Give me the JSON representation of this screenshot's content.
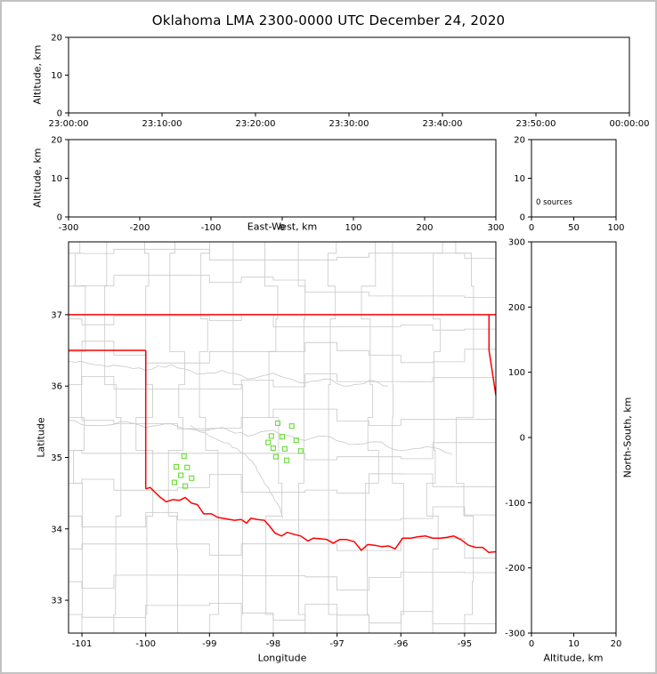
{
  "window": {
    "background": "#ffffff",
    "border_color": "#c2c2c2"
  },
  "title": "Oklahoma LMA 2300-0000 UTC December 24, 2020",
  "chart_data": {
    "type": "scatter",
    "description": "XLMA-style lightning mapping array multi-panel display with zero sources plotted; plan-view map shows Oklahoma state border (red), county lines and rivers (gray), and LMA station locations (green squares).",
    "colors": {
      "axis": "#000000",
      "station": "#66DD33",
      "state_border": "#ff0000",
      "county": "#c8c8c8",
      "river": "#c8c8c8"
    },
    "panels": [
      {
        "id": "time_height",
        "type": "scatter",
        "x_ticks": [
          "23:00:00",
          "23:10:00",
          "23:20:00",
          "23:30:00",
          "23:40:00",
          "23:50:00",
          "00:00:00"
        ],
        "ylabel": "Altitude, km",
        "y_ticks": [
          0,
          10,
          20
        ],
        "ylim": [
          0,
          20
        ],
        "points": []
      },
      {
        "id": "ew_height",
        "type": "scatter",
        "xlabel": "East-West, km",
        "x_ticks": [
          -300,
          -200,
          -100,
          0,
          100,
          200,
          300
        ],
        "xlim": [
          -300,
          300
        ],
        "ylabel": "Altitude, km",
        "y_ticks": [
          0,
          10,
          20
        ],
        "ylim": [
          0,
          20
        ],
        "points": []
      },
      {
        "id": "alt_histogram",
        "type": "line",
        "x_ticks": [
          0,
          50,
          100
        ],
        "xlim": [
          0,
          100
        ],
        "y_ticks": [
          0,
          10,
          20
        ],
        "ylim": [
          0,
          20
        ],
        "annotation": "0 sources",
        "points": []
      },
      {
        "id": "plan_map",
        "type": "scatter",
        "xlabel": "Longitude",
        "x_ticks": [
          -101,
          -100,
          -99,
          -98,
          -97,
          -96,
          -95
        ],
        "xlim": [
          -101.21,
          -94.51
        ],
        "ylabel": "Latitude",
        "y_ticks": [
          33,
          34,
          35,
          36,
          37
        ],
        "ylim": [
          32.54,
          38.02
        ],
        "stations": [
          [
            -97.93,
            35.48
          ],
          [
            -97.71,
            35.44
          ],
          [
            -98.03,
            35.3
          ],
          [
            -97.86,
            35.29
          ],
          [
            -97.64,
            35.24
          ],
          [
            -98.08,
            35.21
          ],
          [
            -98.0,
            35.13
          ],
          [
            -97.82,
            35.12
          ],
          [
            -97.57,
            35.09
          ],
          [
            -97.96,
            35.01
          ],
          [
            -97.79,
            34.96
          ],
          [
            -99.4,
            35.02
          ],
          [
            -99.52,
            34.87
          ],
          [
            -99.35,
            34.86
          ],
          [
            -99.45,
            34.75
          ],
          [
            -99.28,
            34.71
          ],
          [
            -99.55,
            34.65
          ],
          [
            -99.38,
            34.6
          ]
        ],
        "state_border": [
          [
            [
              -101.21,
              37.0
            ],
            [
              -94.51,
              37.0
            ]
          ],
          [
            [
              -101.21,
              36.5
            ],
            [
              -100.0,
              36.5
            ]
          ],
          [
            [
              -100.0,
              36.5
            ],
            [
              -100.0,
              34.56
            ]
          ],
          [
            [
              -94.617,
              37.0
            ],
            [
              -94.617,
              36.5
            ],
            [
              -94.51,
              35.87
            ]
          ],
          [
            [
              -100.0,
              34.56
            ],
            [
              -99.93,
              34.58
            ],
            [
              -99.84,
              34.5
            ],
            [
              -99.77,
              34.44
            ],
            [
              -99.68,
              34.38
            ],
            [
              -99.58,
              34.41
            ],
            [
              -99.47,
              34.4
            ],
            [
              -99.38,
              34.44
            ],
            [
              -99.28,
              34.36
            ],
            [
              -99.19,
              34.34
            ],
            [
              -99.09,
              34.21
            ],
            [
              -98.97,
              34.21
            ],
            [
              -98.87,
              34.16
            ],
            [
              -98.74,
              34.14
            ],
            [
              -98.61,
              34.12
            ],
            [
              -98.5,
              34.13
            ],
            [
              -98.42,
              34.08
            ],
            [
              -98.35,
              34.15
            ],
            [
              -98.25,
              34.13
            ],
            [
              -98.14,
              34.12
            ],
            [
              -98.06,
              34.04
            ],
            [
              -97.97,
              33.94
            ],
            [
              -97.87,
              33.9
            ],
            [
              -97.78,
              33.95
            ],
            [
              -97.66,
              33.92
            ],
            [
              -97.57,
              33.9
            ],
            [
              -97.46,
              33.83
            ],
            [
              -97.37,
              33.87
            ],
            [
              -97.25,
              33.86
            ],
            [
              -97.16,
              33.85
            ],
            [
              -97.06,
              33.8
            ],
            [
              -96.96,
              33.85
            ],
            [
              -96.85,
              33.85
            ],
            [
              -96.73,
              33.82
            ],
            [
              -96.62,
              33.7
            ],
            [
              -96.52,
              33.78
            ],
            [
              -96.41,
              33.77
            ],
            [
              -96.3,
              33.75
            ],
            [
              -96.19,
              33.76
            ],
            [
              -96.09,
              33.72
            ],
            [
              -95.97,
              33.87
            ],
            [
              -95.84,
              33.87
            ],
            [
              -95.73,
              33.89
            ],
            [
              -95.61,
              33.9
            ],
            [
              -95.5,
              33.87
            ],
            [
              -95.39,
              33.87
            ],
            [
              -95.28,
              33.88
            ],
            [
              -95.17,
              33.9
            ],
            [
              -95.06,
              33.85
            ],
            [
              -94.94,
              33.77
            ],
            [
              -94.83,
              33.74
            ],
            [
              -94.72,
              33.74
            ],
            [
              -94.62,
              33.67
            ],
            [
              -94.51,
              33.68
            ]
          ]
        ],
        "rivers": [
          [
            [
              -101.21,
              36.35
            ],
            [
              -100.8,
              36.3
            ],
            [
              -100.4,
              36.28
            ],
            [
              -100.0,
              36.22
            ],
            [
              -99.6,
              36.3
            ],
            [
              -99.2,
              36.17
            ],
            [
              -98.8,
              36.22
            ],
            [
              -98.4,
              36.1
            ],
            [
              -98.0,
              36.18
            ],
            [
              -97.6,
              36.05
            ],
            [
              -97.2,
              36.1
            ],
            [
              -96.8,
              36.0
            ],
            [
              -96.5,
              36.08
            ],
            [
              -96.2,
              36.0
            ]
          ],
          [
            [
              -101.21,
              35.52
            ],
            [
              -100.8,
              35.45
            ],
            [
              -100.4,
              35.5
            ],
            [
              -100.0,
              35.42
            ],
            [
              -99.6,
              35.47
            ],
            [
              -99.2,
              35.38
            ],
            [
              -98.8,
              35.42
            ],
            [
              -98.4,
              35.3
            ],
            [
              -98.0,
              35.38
            ],
            [
              -97.6,
              35.25
            ],
            [
              -97.2,
              35.3
            ],
            [
              -96.8,
              35.18
            ],
            [
              -96.4,
              35.22
            ],
            [
              -96.0,
              35.1
            ],
            [
              -95.6,
              35.15
            ],
            [
              -95.2,
              35.05
            ]
          ],
          [
            [
              -99.3,
              35.45
            ],
            [
              -99.0,
              35.3
            ],
            [
              -98.7,
              35.2
            ],
            [
              -98.45,
              35.05
            ],
            [
              -98.3,
              34.9
            ],
            [
              -98.2,
              34.75
            ],
            [
              -98.1,
              34.6
            ],
            [
              -98.0,
              34.45
            ],
            [
              -97.9,
              34.3
            ],
            [
              -97.85,
              34.15
            ]
          ]
        ],
        "county_grid": {
          "lon0": -101.21,
          "lon1": -94.51,
          "lat0": 32.54,
          "lat1": 38.02,
          "col": 0.5,
          "row": 0.46,
          "col_start": -101.0,
          "row_start": 32.8,
          "jog_probability": 0.55,
          "jog_amplitude": 0.16,
          "seed": 11
        }
      },
      {
        "id": "ns_height",
        "type": "scatter",
        "xlabel": "Altitude, km",
        "x_ticks": [
          0,
          10,
          20
        ],
        "xlim": [
          0,
          20
        ],
        "ylabel_right": "North-South, km",
        "y_ticks": [
          300,
          200,
          100,
          0,
          -100,
          -200,
          -300
        ],
        "ylim": [
          -300,
          300
        ],
        "points": []
      }
    ]
  }
}
